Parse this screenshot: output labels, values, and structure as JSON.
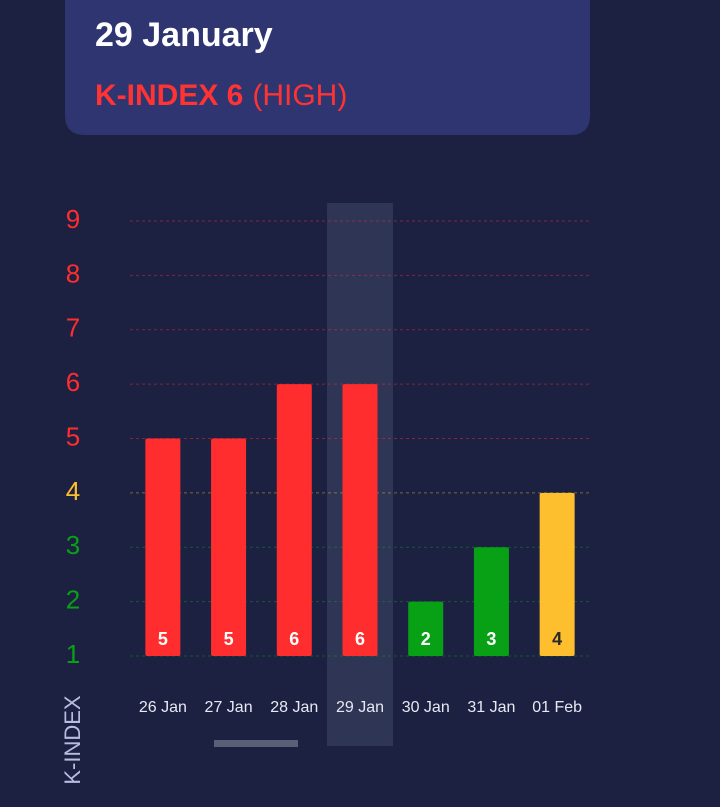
{
  "header": {
    "date": "29 January",
    "kindex": "K-INDEX 6",
    "level": "(HIGH)"
  },
  "chart_data": {
    "type": "bar",
    "y_label": "K-INDEX",
    "categories": [
      "26 Jan",
      "27 Jan",
      "28 Jan",
      "29 Jan",
      "30 Jan",
      "31 Jan",
      "01 Feb"
    ],
    "values": [
      5,
      5,
      6,
      6,
      2,
      3,
      4
    ],
    "colors": [
      "#ff2d2d",
      "#ff2d2d",
      "#ff2d2d",
      "#ff2d2d",
      "#08a116",
      "#08a116",
      "#fdbf2d"
    ],
    "ylim": [
      1,
      9
    ],
    "yticks": [
      1,
      2,
      3,
      4,
      5,
      6,
      7,
      8,
      9
    ],
    "ytick_colors": [
      "#08a116",
      "#08a116",
      "#08a116",
      "#fdbf2d",
      "#ff2d2d",
      "#ff2d2d",
      "#ff2d2d",
      "#ff2d2d",
      "#ff2d2d"
    ],
    "grid": true,
    "highlight": 3
  }
}
